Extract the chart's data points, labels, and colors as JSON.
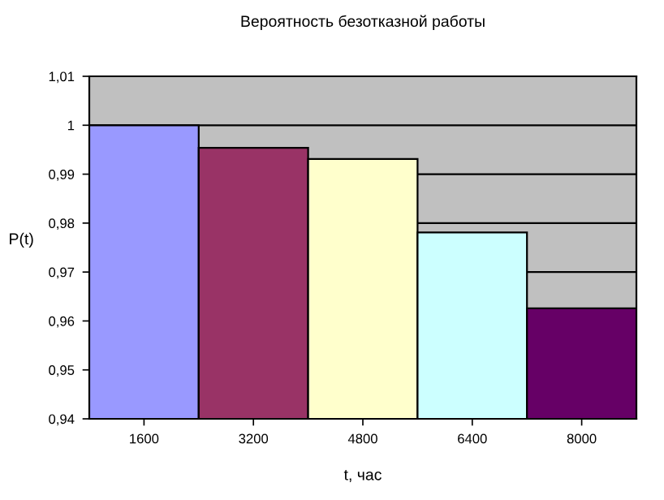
{
  "chart_data": {
    "type": "bar",
    "title": "Вероятность безотказной работы",
    "xlabel": "t, час",
    "ylabel": "P(t)",
    "categories": [
      "1600",
      "3200",
      "4800",
      "6400",
      "8000"
    ],
    "values": [
      1.0,
      0.9954,
      0.9931,
      0.9781,
      0.9626
    ],
    "colors": [
      "#9999ff",
      "#993366",
      "#ffffcc",
      "#ccffff",
      "#660066"
    ],
    "ylim": [
      0.94,
      1.01
    ],
    "yticks": [
      {
        "value": 0.94,
        "label": "0,94"
      },
      {
        "value": 0.95,
        "label": "0,95"
      },
      {
        "value": 0.96,
        "label": "0,96"
      },
      {
        "value": 0.97,
        "label": "0,97"
      },
      {
        "value": 0.98,
        "label": "0,98"
      },
      {
        "value": 0.99,
        "label": "0,99"
      },
      1,
      {
        "value": 1.01,
        "label": "1,01"
      }
    ],
    "grid": "y",
    "legend": false
  }
}
